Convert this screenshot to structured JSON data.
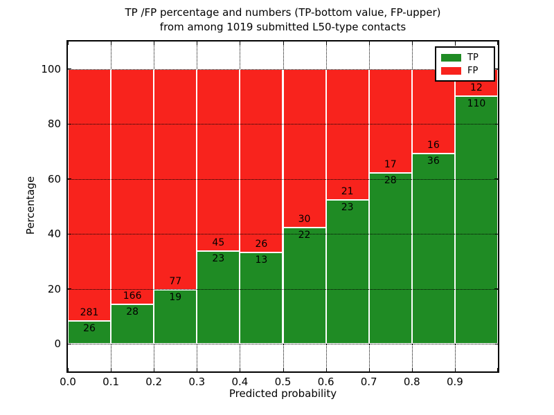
{
  "chart_data": {
    "type": "bar",
    "stacked": true,
    "normalized_to_percent": true,
    "title_line1": "TP /FP percentage and numbers (TP-bottom value, FP-upper)",
    "title_line2": "from among 1019 submitted L50-type contacts",
    "total_submitted_contacts": 1019,
    "xlabel": "Predicted probability",
    "ylabel": "Percentage",
    "categories": [
      "0.0-0.1",
      "0.1-0.2",
      "0.2-0.3",
      "0.3-0.4",
      "0.4-0.5",
      "0.5-0.6",
      "0.6-0.7",
      "0.7-0.8",
      "0.8-0.9",
      "0.9-1.0"
    ],
    "series": [
      {
        "name": "TP",
        "color": "#1f8b24",
        "values": [
          26,
          28,
          19,
          23,
          13,
          22,
          23,
          28,
          36,
          110
        ]
      },
      {
        "name": "FP",
        "color": "#f8231d",
        "values": [
          281,
          166,
          77,
          45,
          26,
          30,
          21,
          17,
          16,
          12
        ]
      }
    ],
    "xlim": [
      0.0,
      1.0
    ],
    "ylim": [
      -10,
      110
    ],
    "xticks": [
      "0.0",
      "0.1",
      "0.2",
      "0.3",
      "0.4",
      "0.5",
      "0.6",
      "0.7",
      "0.8",
      "0.9"
    ],
    "yticks": [
      0,
      20,
      40,
      60,
      80,
      100
    ],
    "grid": true,
    "legend": {
      "position": "upper right",
      "entries": [
        "TP",
        "FP"
      ]
    }
  }
}
